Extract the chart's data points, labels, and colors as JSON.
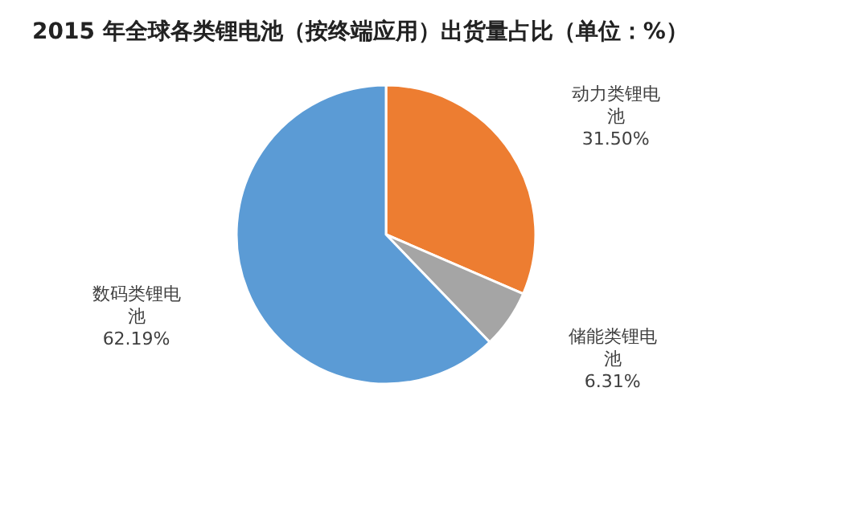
{
  "chart_data": {
    "type": "pie",
    "title": "2015 年全球各类锂电池（按终端应用）出货量占比（单位：%）",
    "categories": [
      "动力类锂电池",
      "储能类锂电池",
      "数码类锂电池"
    ],
    "values": [
      31.5,
      6.31,
      62.19
    ],
    "value_labels": [
      "31.50%",
      "6.31%",
      "62.19%"
    ],
    "colors": [
      "#ed7d31",
      "#a5a5a5",
      "#5b9bd5"
    ],
    "legend": false
  }
}
